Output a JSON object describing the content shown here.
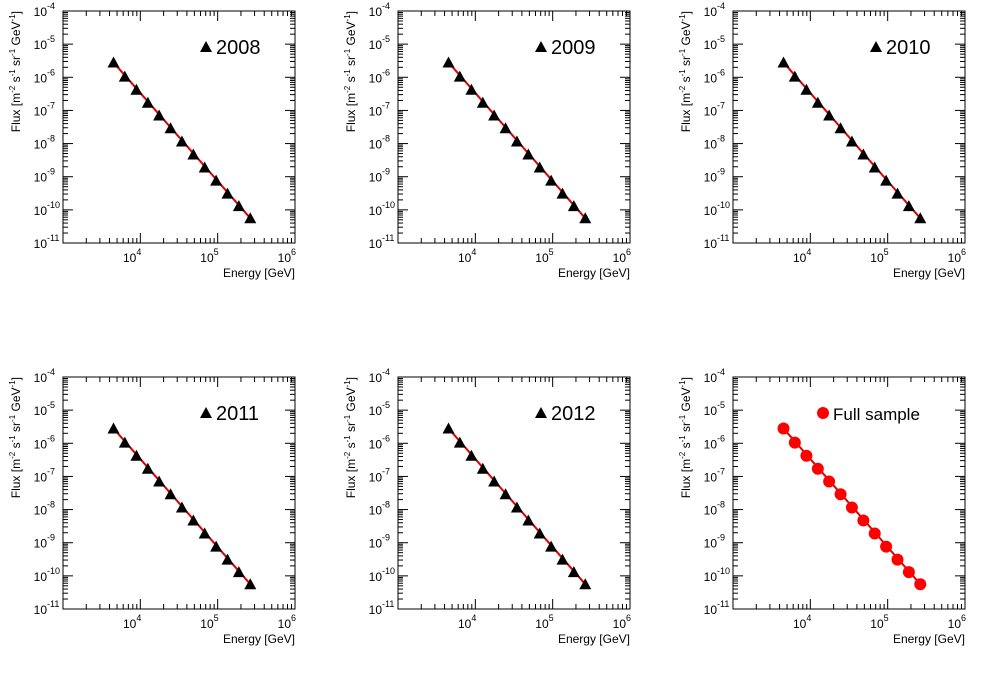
{
  "figure": {
    "x_axis_label": "Energy [GeV]",
    "y_axis_label_parts": [
      "Flux [m",
      "-2",
      " s",
      "-1",
      " sr",
      "-1",
      " GeV",
      "-1",
      "]"
    ]
  },
  "colors": {
    "fit_line": "#e00000",
    "triangle_marker": "#000000",
    "circle_marker": "#ff0000"
  },
  "chart_data": [
    {
      "type": "scatter",
      "legend": {
        "label": "2008",
        "marker": "triangle-up",
        "placement": "top-right"
      },
      "x_axis": {
        "label": "Energy [GeV]",
        "scale": "log",
        "range": [
          1000,
          1000000
        ],
        "major_ticks": [
          10000,
          100000,
          1000000
        ]
      },
      "y_axis": {
        "label": "Flux [m^-2 s^-1 sr^-1 GeV^-1]",
        "scale": "log",
        "range": [
          1e-11,
          0.0001
        ],
        "major_ticks": [
          1e-11,
          1e-10,
          1e-09,
          1e-08,
          1e-07,
          1e-06,
          1e-05,
          0.0001
        ]
      },
      "series": [
        {
          "name": "2008",
          "marker": "triangle-up",
          "x": [
            4500,
            6300,
            8900,
            12500,
            17500,
            24600,
            34500,
            48500,
            68000,
            95500,
            134000,
            188000,
            264000
          ],
          "y": [
            2.8e-06,
            1.05e-06,
            4.2e-07,
            1.7e-07,
            7e-08,
            2.9e-08,
            1.15e-08,
            4.7e-09,
            1.9e-09,
            7.6e-10,
            3.1e-10,
            1.3e-10,
            5.6e-11
          ]
        }
      ],
      "fit": {
        "type": "power-law",
        "x_range": [
          4500,
          264000
        ],
        "y_range": [
          2.8e-06,
          5.6e-11
        ]
      }
    },
    {
      "type": "scatter",
      "legend": {
        "label": "2009",
        "marker": "triangle-up",
        "placement": "top-right"
      },
      "x_axis": {
        "label": "Energy [GeV]",
        "scale": "log",
        "range": [
          1000,
          1000000
        ],
        "major_ticks": [
          10000,
          100000,
          1000000
        ]
      },
      "y_axis": {
        "label": "Flux [m^-2 s^-1 sr^-1 GeV^-1]",
        "scale": "log",
        "range": [
          1e-11,
          0.0001
        ],
        "major_ticks": [
          1e-11,
          1e-10,
          1e-09,
          1e-08,
          1e-07,
          1e-06,
          1e-05,
          0.0001
        ]
      },
      "series": [
        {
          "name": "2009",
          "marker": "triangle-up",
          "x": [
            4500,
            6300,
            8900,
            12500,
            17500,
            24600,
            34500,
            48500,
            68000,
            95500,
            134000,
            188000,
            264000
          ],
          "y": [
            2.8e-06,
            1.05e-06,
            4.2e-07,
            1.7e-07,
            7e-08,
            2.9e-08,
            1.15e-08,
            4.7e-09,
            1.9e-09,
            7.6e-10,
            3.1e-10,
            1.3e-10,
            5.6e-11
          ]
        }
      ],
      "fit": {
        "type": "power-law",
        "x_range": [
          4500,
          264000
        ],
        "y_range": [
          2.8e-06,
          5.6e-11
        ]
      }
    },
    {
      "type": "scatter",
      "legend": {
        "label": "2010",
        "marker": "triangle-up",
        "placement": "top-right"
      },
      "x_axis": {
        "label": "Energy [GeV]",
        "scale": "log",
        "range": [
          1000,
          1000000
        ],
        "major_ticks": [
          10000,
          100000,
          1000000
        ]
      },
      "y_axis": {
        "label": "Flux [m^-2 s^-1 sr^-1 GeV^-1]",
        "scale": "log",
        "range": [
          1e-11,
          0.0001
        ],
        "major_ticks": [
          1e-11,
          1e-10,
          1e-09,
          1e-08,
          1e-07,
          1e-06,
          1e-05,
          0.0001
        ]
      },
      "series": [
        {
          "name": "2010",
          "marker": "triangle-up",
          "x": [
            4500,
            6300,
            8900,
            12500,
            17500,
            24600,
            34500,
            48500,
            68000,
            95500,
            134000,
            188000,
            264000
          ],
          "y": [
            2.8e-06,
            1.05e-06,
            4.2e-07,
            1.7e-07,
            7e-08,
            2.9e-08,
            1.15e-08,
            4.7e-09,
            1.9e-09,
            7.6e-10,
            3.1e-10,
            1.3e-10,
            5.6e-11
          ]
        }
      ],
      "fit": {
        "type": "power-law",
        "x_range": [
          4500,
          264000
        ],
        "y_range": [
          2.8e-06,
          5.6e-11
        ]
      }
    },
    {
      "type": "scatter",
      "legend": {
        "label": "2011",
        "marker": "triangle-up",
        "placement": "top-right"
      },
      "x_axis": {
        "label": "Energy [GeV]",
        "scale": "log",
        "range": [
          1000,
          1000000
        ],
        "major_ticks": [
          10000,
          100000,
          1000000
        ]
      },
      "y_axis": {
        "label": "Flux [m^-2 s^-1 sr^-1 GeV^-1]",
        "scale": "log",
        "range": [
          1e-11,
          0.0001
        ],
        "major_ticks": [
          1e-11,
          1e-10,
          1e-09,
          1e-08,
          1e-07,
          1e-06,
          1e-05,
          0.0001
        ]
      },
      "series": [
        {
          "name": "2011",
          "marker": "triangle-up",
          "x": [
            4500,
            6300,
            8900,
            12500,
            17500,
            24600,
            34500,
            48500,
            68000,
            95500,
            134000,
            188000,
            264000
          ],
          "y": [
            2.8e-06,
            1.05e-06,
            4.2e-07,
            1.7e-07,
            7e-08,
            2.9e-08,
            1.15e-08,
            4.7e-09,
            1.9e-09,
            7.6e-10,
            3.1e-10,
            1.3e-10,
            5.6e-11
          ]
        }
      ],
      "fit": {
        "type": "power-law",
        "x_range": [
          4500,
          264000
        ],
        "y_range": [
          2.8e-06,
          5.6e-11
        ]
      }
    },
    {
      "type": "scatter",
      "legend": {
        "label": "2012",
        "marker": "triangle-up",
        "placement": "top-right"
      },
      "x_axis": {
        "label": "Energy [GeV]",
        "scale": "log",
        "range": [
          1000,
          1000000
        ],
        "major_ticks": [
          10000,
          100000,
          1000000
        ]
      },
      "y_axis": {
        "label": "Flux [m^-2 s^-1 sr^-1 GeV^-1]",
        "scale": "log",
        "range": [
          1e-11,
          0.0001
        ],
        "major_ticks": [
          1e-11,
          1e-10,
          1e-09,
          1e-08,
          1e-07,
          1e-06,
          1e-05,
          0.0001
        ]
      },
      "series": [
        {
          "name": "2012",
          "marker": "triangle-up",
          "x": [
            4500,
            6300,
            8900,
            12500,
            17500,
            24600,
            34500,
            48500,
            68000,
            95500,
            134000,
            188000,
            264000
          ],
          "y": [
            2.8e-06,
            1.05e-06,
            4.2e-07,
            1.7e-07,
            7e-08,
            2.9e-08,
            1.15e-08,
            4.7e-09,
            1.9e-09,
            7.6e-10,
            3.1e-10,
            1.3e-10,
            5.6e-11
          ]
        }
      ],
      "fit": {
        "type": "power-law",
        "x_range": [
          4500,
          264000
        ],
        "y_range": [
          2.8e-06,
          5.6e-11
        ]
      }
    },
    {
      "type": "scatter",
      "legend": {
        "label": "Full sample",
        "marker": "circle",
        "placement": "top-right"
      },
      "x_axis": {
        "label": "Energy [GeV]",
        "scale": "log",
        "range": [
          1000,
          1000000
        ],
        "major_ticks": [
          10000,
          100000,
          1000000
        ]
      },
      "y_axis": {
        "label": "Flux [m^-2 s^-1 sr^-1 GeV^-1]",
        "scale": "log",
        "range": [
          1e-11,
          0.0001
        ],
        "major_ticks": [
          1e-11,
          1e-10,
          1e-09,
          1e-08,
          1e-07,
          1e-06,
          1e-05,
          0.0001
        ]
      },
      "series": [
        {
          "name": "Full sample",
          "marker": "circle",
          "x": [
            4500,
            6300,
            8900,
            12500,
            17500,
            24600,
            34500,
            48500,
            68000,
            95500,
            134000,
            188000,
            264000
          ],
          "y": [
            2.8e-06,
            1.05e-06,
            4.2e-07,
            1.7e-07,
            7e-08,
            2.9e-08,
            1.15e-08,
            4.7e-09,
            1.9e-09,
            7.6e-10,
            3.1e-10,
            1.3e-10,
            5.6e-11
          ]
        }
      ],
      "fit": {
        "type": "power-law",
        "x_range": [
          4500,
          264000
        ],
        "y_range": [
          2.8e-06,
          5.6e-11
        ]
      }
    }
  ]
}
